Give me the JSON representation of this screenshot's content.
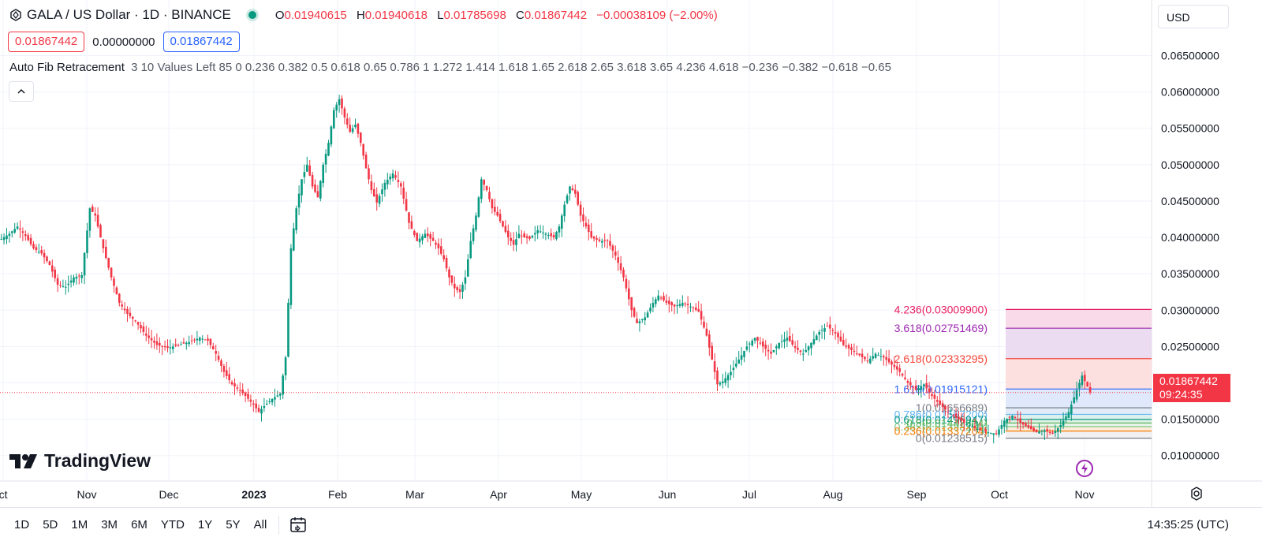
{
  "header": {
    "symbol": "GALA / US Dollar · 1D · BINANCE",
    "open_label": "O",
    "open": "0.01940615",
    "high_label": "H",
    "high": "0.01940618",
    "low_label": "L",
    "low": "0.01785698",
    "close_label": "C",
    "close": "0.01867442",
    "change": "−0.00038109 (−2.00%)",
    "sell": "0.01867442",
    "spread": "0.00000000",
    "buy": "0.01867442"
  },
  "indicator": {
    "name": "Auto Fib Retracement",
    "params": "3 10 Values Left 85 0 0.236 0.382 0.5 0.618 0.65 0.786 1 1.272 1.414 1.618 1.65 2.618 2.65 3.618 3.65 4.236 4.618 −0.236 −0.382 −0.618 −0.65"
  },
  "currency": "USD",
  "brand": "TradingView",
  "toolbar": {
    "periods": [
      "1D",
      "5D",
      "1M",
      "3M",
      "6M",
      "YTD",
      "1Y",
      "5Y",
      "All"
    ],
    "clock": "14:35:25 (UTC)"
  },
  "last_price": {
    "value": "0.01867442",
    "countdown": "09:24:35"
  },
  "colors": {
    "up": "#089981",
    "down": "#f23645",
    "fib_blue": "#2962ff"
  },
  "chart_data": {
    "type": "candlestick",
    "symbol": "GALA / US Dollar",
    "interval": "1D",
    "y_ticks": [
      "0.06500000",
      "0.06000000",
      "0.05500000",
      "0.05000000",
      "0.04500000",
      "0.04000000",
      "0.03500000",
      "0.03000000",
      "0.02500000",
      "0.02000000",
      "0.01500000",
      "0.01000000"
    ],
    "ylim": [
      0.0065,
      0.0695
    ],
    "x_ticks": [
      "ct",
      "Nov",
      "Dec",
      "2023",
      "Feb",
      "Mar",
      "Apr",
      "May",
      "Jun",
      "Jul",
      "Aug",
      "Sep",
      "Oct",
      "Nov"
    ],
    "close_path": [
      [
        0,
        0.0398
      ],
      [
        3,
        0.0405
      ],
      [
        6,
        0.0415
      ],
      [
        9,
        0.0402
      ],
      [
        12,
        0.0385
      ],
      [
        15,
        0.0378
      ],
      [
        18,
        0.0362
      ],
      [
        21,
        0.0335
      ],
      [
        24,
        0.0332
      ],
      [
        27,
        0.0345
      ],
      [
        30,
        0.0348
      ],
      [
        33,
        0.044
      ],
      [
        35,
        0.043
      ],
      [
        38,
        0.0385
      ],
      [
        41,
        0.0345
      ],
      [
        44,
        0.031
      ],
      [
        47,
        0.0295
      ],
      [
        50,
        0.0285
      ],
      [
        54,
        0.0265
      ],
      [
        58,
        0.0252
      ],
      [
        62,
        0.0248
      ],
      [
        66,
        0.0252
      ],
      [
        70,
        0.0256
      ],
      [
        74,
        0.0262
      ],
      [
        77,
        0.0258
      ],
      [
        80,
        0.024
      ],
      [
        83,
        0.0215
      ],
      [
        86,
        0.0198
      ],
      [
        90,
        0.0186
      ],
      [
        94,
        0.017
      ],
      [
        96,
        0.016
      ],
      [
        98,
        0.0168
      ],
      [
        101,
        0.0178
      ],
      [
        104,
        0.0185
      ],
      [
        106,
        0.0235
      ],
      [
        107,
        0.031
      ],
      [
        108,
        0.0385
      ],
      [
        110,
        0.044
      ],
      [
        112,
        0.048
      ],
      [
        114,
        0.05
      ],
      [
        116,
        0.047
      ],
      [
        118,
        0.0455
      ],
      [
        120,
        0.05
      ],
      [
        122,
        0.053
      ],
      [
        124,
        0.0575
      ],
      [
        126,
        0.059
      ],
      [
        128,
        0.0565
      ],
      [
        130,
        0.0545
      ],
      [
        132,
        0.0555
      ],
      [
        134,
        0.053
      ],
      [
        136,
        0.0495
      ],
      [
        138,
        0.0465
      ],
      [
        140,
        0.0448
      ],
      [
        143,
        0.0475
      ],
      [
        146,
        0.0488
      ],
      [
        149,
        0.047
      ],
      [
        152,
        0.042
      ],
      [
        155,
        0.0395
      ],
      [
        158,
        0.0405
      ],
      [
        161,
        0.0395
      ],
      [
        163,
        0.0385
      ],
      [
        165,
        0.037
      ],
      [
        167,
        0.0345
      ],
      [
        169,
        0.033
      ],
      [
        171,
        0.0325
      ],
      [
        173,
        0.0345
      ],
      [
        175,
        0.0395
      ],
      [
        177,
        0.043
      ],
      [
        179,
        0.048
      ],
      [
        181,
        0.0465
      ],
      [
        183,
        0.044
      ],
      [
        185,
        0.043
      ],
      [
        187,
        0.0415
      ],
      [
        189,
        0.04
      ],
      [
        191,
        0.039
      ],
      [
        193,
        0.0405
      ],
      [
        195,
        0.04
      ],
      [
        197,
        0.0398
      ],
      [
        200,
        0.041
      ],
      [
        203,
        0.0405
      ],
      [
        206,
        0.04
      ],
      [
        208,
        0.0415
      ],
      [
        210,
        0.0445
      ],
      [
        212,
        0.047
      ],
      [
        214,
        0.046
      ],
      [
        216,
        0.043
      ],
      [
        218,
        0.0415
      ],
      [
        220,
        0.04
      ],
      [
        223,
        0.0395
      ],
      [
        226,
        0.0395
      ],
      [
        229,
        0.0375
      ],
      [
        232,
        0.0345
      ],
      [
        235,
        0.03
      ],
      [
        237,
        0.0282
      ],
      [
        240,
        0.029
      ],
      [
        243,
        0.031
      ],
      [
        245,
        0.032
      ],
      [
        248,
        0.031
      ],
      [
        251,
        0.0305
      ],
      [
        254,
        0.031
      ],
      [
        257,
        0.0305
      ],
      [
        260,
        0.0298
      ],
      [
        263,
        0.0265
      ],
      [
        265,
        0.0232
      ],
      [
        267,
        0.0198
      ],
      [
        269,
        0.0202
      ],
      [
        272,
        0.0215
      ],
      [
        275,
        0.0232
      ],
      [
        278,
        0.025
      ],
      [
        281,
        0.0262
      ],
      [
        284,
        0.025
      ],
      [
        287,
        0.024
      ],
      [
        290,
        0.0255
      ],
      [
        293,
        0.0262
      ],
      [
        296,
        0.0248
      ],
      [
        299,
        0.024
      ],
      [
        302,
        0.0255
      ],
      [
        305,
        0.027
      ],
      [
        308,
        0.0278
      ],
      [
        311,
        0.0268
      ],
      [
        314,
        0.0252
      ],
      [
        317,
        0.0245
      ],
      [
        320,
        0.0238
      ],
      [
        323,
        0.023
      ],
      [
        326,
        0.024
      ],
      [
        329,
        0.0235
      ],
      [
        332,
        0.0225
      ],
      [
        335,
        0.0215
      ],
      [
        338,
        0.02
      ],
      [
        341,
        0.019
      ],
      [
        344,
        0.0198
      ],
      [
        347,
        0.0182
      ],
      [
        350,
        0.017
      ],
      [
        353,
        0.016
      ],
      [
        356,
        0.0152
      ],
      [
        359,
        0.0145
      ],
      [
        362,
        0.014
      ],
      [
        365,
        0.0135
      ],
      [
        368,
        0.0132
      ],
      [
        371,
        0.013
      ],
      [
        374,
        0.0148
      ],
      [
        377,
        0.0155
      ],
      [
        380,
        0.0145
      ],
      [
        383,
        0.0138
      ],
      [
        386,
        0.0132
      ],
      [
        389,
        0.0135
      ],
      [
        392,
        0.013
      ],
      [
        395,
        0.0142
      ],
      [
        398,
        0.016
      ],
      [
        400,
        0.018
      ],
      [
        402,
        0.02
      ],
      [
        403,
        0.021
      ],
      [
        405,
        0.0195
      ],
      [
        406,
        0.0187
      ]
    ],
    "fib_levels": [
      {
        "ratio": "4.236",
        "value": "0.03009900",
        "color": "#e91e63"
      },
      {
        "ratio": "3.618",
        "value": "0.02751469",
        "color": "#9c27b0"
      },
      {
        "ratio": "2.618",
        "value": "0.02333295",
        "color": "#f44336"
      },
      {
        "ratio": "1.618",
        "value": "0.01915121",
        "color": "#2962ff"
      },
      {
        "ratio": "1",
        "value": "0.01656689",
        "color": "#787b86"
      },
      {
        "ratio": "0.786",
        "value": "0.01567200",
        "color": "#64b5f6"
      },
      {
        "ratio": "0.618",
        "value": "0.01496947",
        "color": "#089981"
      },
      {
        "ratio": "0.5",
        "value": "0.01447604",
        "color": "#4caf50"
      },
      {
        "ratio": "0.382",
        "value": "0.01398260",
        "color": "#81c784"
      },
      {
        "ratio": "0.236",
        "value": "0.01337204",
        "color": "#f57c00"
      },
      {
        "ratio": "0",
        "value": "0.01238515",
        "color": "#787b86"
      }
    ],
    "last_price": 0.01867442,
    "grid": true
  }
}
